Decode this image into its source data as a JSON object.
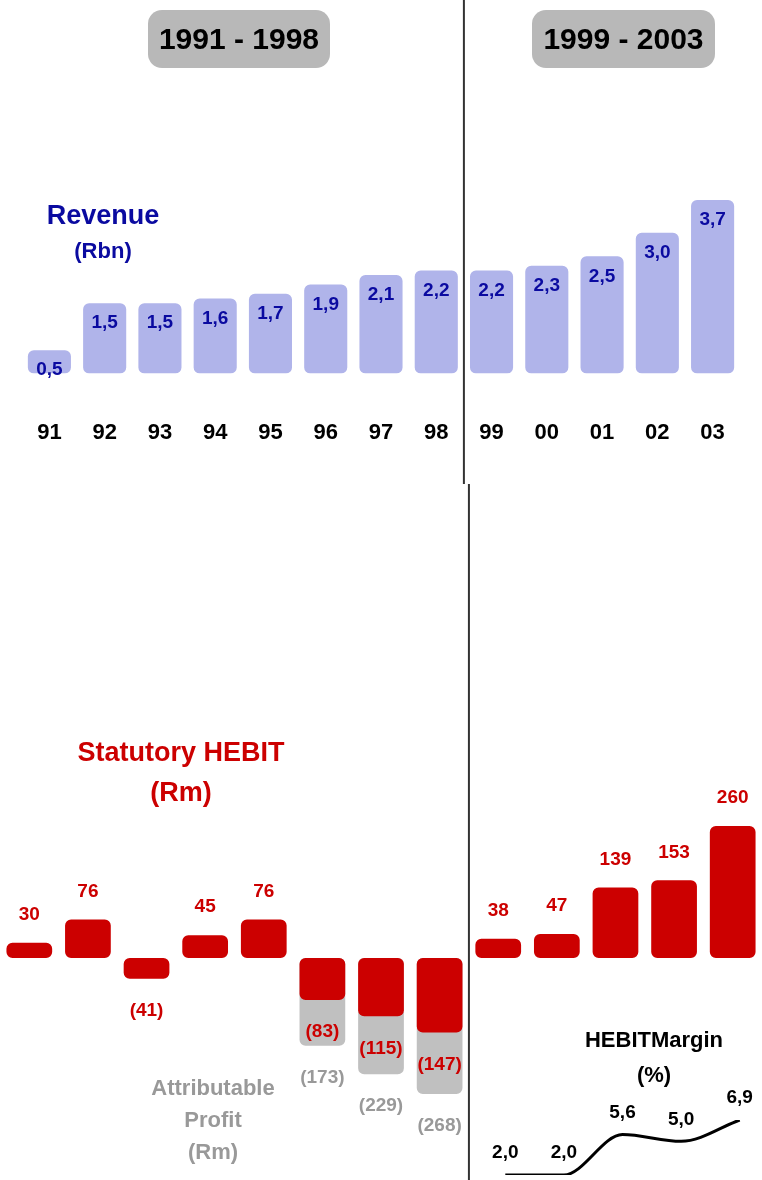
{
  "chart_data": [
    {
      "type": "bar",
      "title": "Revenue",
      "subtitle": "(Rbn)",
      "categories": [
        "91",
        "92",
        "93",
        "94",
        "95",
        "96",
        "97",
        "98",
        "99",
        "00",
        "01",
        "02",
        "03"
      ],
      "color": "#b0b4ea",
      "values": [
        0.5,
        1.5,
        1.5,
        1.6,
        1.7,
        1.9,
        2.1,
        2.2,
        2.2,
        2.3,
        2.5,
        3.0,
        3.7
      ],
      "value_labels": [
        "0,5",
        "1,5",
        "1,5",
        "1,6",
        "1,7",
        "1,9",
        "2,1",
        "2,2",
        "2,2",
        "2,3",
        "2,5",
        "3,0",
        "3,7"
      ],
      "grid": false,
      "legend": false,
      "annotations": [
        "1991 - 1998",
        "1999 - 2003"
      ]
    },
    {
      "type": "bar",
      "title": "Statutory HEBIT",
      "subtitle": "(Rm)",
      "categories": [
        "91",
        "92",
        "93",
        "94",
        "95",
        "96",
        "97",
        "98",
        "99",
        "00",
        "01",
        "02",
        "03"
      ],
      "tick_labels": false,
      "grid": false,
      "legend": false,
      "series": [
        {
          "color": "#cc0000",
          "values": [
            30,
            76,
            -41,
            45,
            76,
            -83,
            -115,
            -147,
            38,
            47,
            139,
            153,
            260
          ],
          "value_labels": [
            "30",
            "76",
            "(41)",
            "45",
            "76",
            "(83)",
            "(115)",
            "(147)",
            "38",
            "47",
            "139",
            "153",
            "260"
          ]
        },
        {
          "name": "Attributable Profit (Rm)",
          "color": "#c0c0c0",
          "values": [
            null,
            null,
            null,
            null,
            null,
            -173,
            -229,
            -268,
            null,
            null,
            null,
            null,
            null
          ],
          "value_labels": [
            null,
            null,
            null,
            null,
            null,
            "(173)",
            "(229)",
            "(268)",
            null,
            null,
            null,
            null,
            null
          ]
        }
      ]
    },
    {
      "type": "line",
      "title": "HEBITMargin",
      "subtitle": "(%)",
      "categories": [
        null,
        null,
        null,
        null,
        null
      ],
      "tick_labels": false,
      "color": "#000000",
      "values": [
        2.0,
        2.0,
        5.6,
        5.0,
        6.9
      ],
      "value_labels": [
        "2,0",
        "2,0",
        "5,6",
        "5,0",
        "6,9"
      ],
      "marker": "none",
      "grid": false,
      "legend": false
    }
  ]
}
